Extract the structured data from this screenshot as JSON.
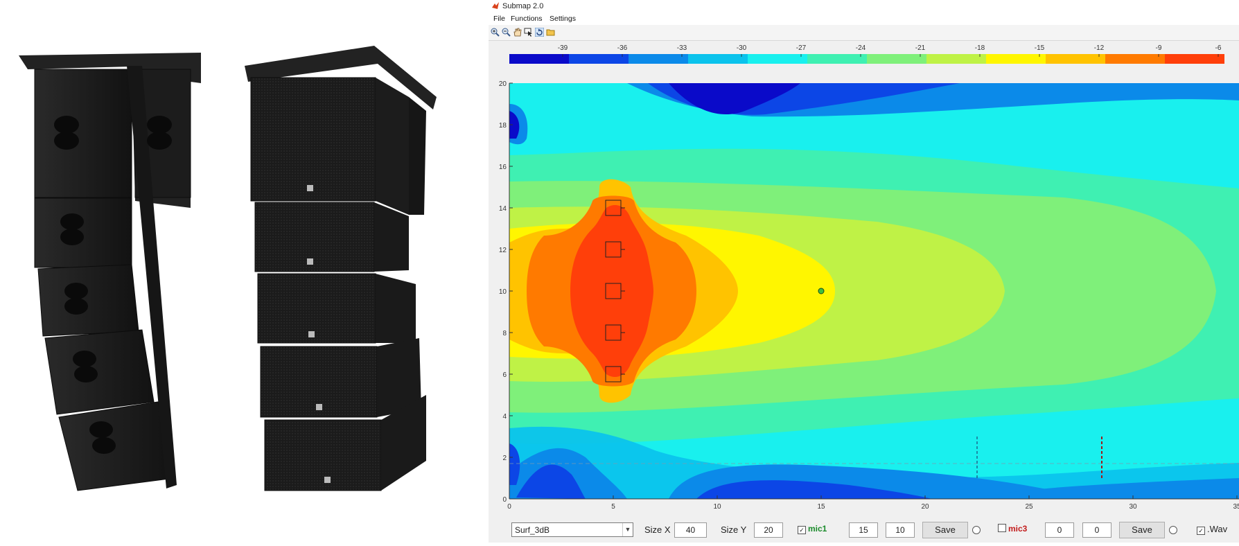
{
  "window": {
    "title": "Submap 2.0"
  },
  "menu": [
    "File",
    "Functions",
    "Settings"
  ],
  "toolbar_icons": [
    "zoom-in-icon",
    "zoom-out-icon",
    "pan-icon",
    "data-cursor-icon",
    "rotate-icon",
    "open-folder-icon"
  ],
  "colorbar": {
    "ticks": [
      "-39",
      "-36",
      "-33",
      "-30",
      "-27",
      "-24",
      "-21",
      "-18",
      "-15",
      "-12",
      "-9",
      "-6"
    ],
    "colors": [
      "#0a0ac9",
      "#0c46e6",
      "#0b8ae9",
      "#0bc3ec",
      "#19f0ee",
      "#3ff0b2",
      "#7ff07a",
      "#bff246",
      "#fff600",
      "#ffc300",
      "#ff7a00",
      "#ff3f0a"
    ]
  },
  "plot": {
    "x_ticks": [
      "0",
      "5",
      "10",
      "15",
      "20",
      "25",
      "30",
      "35"
    ],
    "y_ticks": [
      "0",
      "2",
      "4",
      "6",
      "8",
      "10",
      "12",
      "14",
      "16",
      "18",
      "20"
    ],
    "xlim": [
      0,
      35
    ],
    "ylim": [
      0,
      20
    ],
    "speakers": [
      {
        "x": 5,
        "y": 14
      },
      {
        "x": 5,
        "y": 12
      },
      {
        "x": 5,
        "y": 10
      },
      {
        "x": 5,
        "y": 8
      },
      {
        "x": 5,
        "y": 6
      }
    ],
    "mic": {
      "x": 15,
      "y": 10
    }
  },
  "controls": {
    "preset": "Surf_3dB",
    "size_x_label": "Size X",
    "size_x": "40",
    "size_y_label": "Size Y",
    "size_y": "20",
    "mic1_label": "mic1",
    "mic1_x": "15",
    "mic1_y": "10",
    "save_label": "Save",
    "mic3_label": "mic3",
    "mic3_x": "0",
    "mic3_y": "0",
    "wav_label": ".Wav",
    "colors": {
      "mic1": "#1a8a2a",
      "mic3": "#c21b1b"
    }
  }
}
